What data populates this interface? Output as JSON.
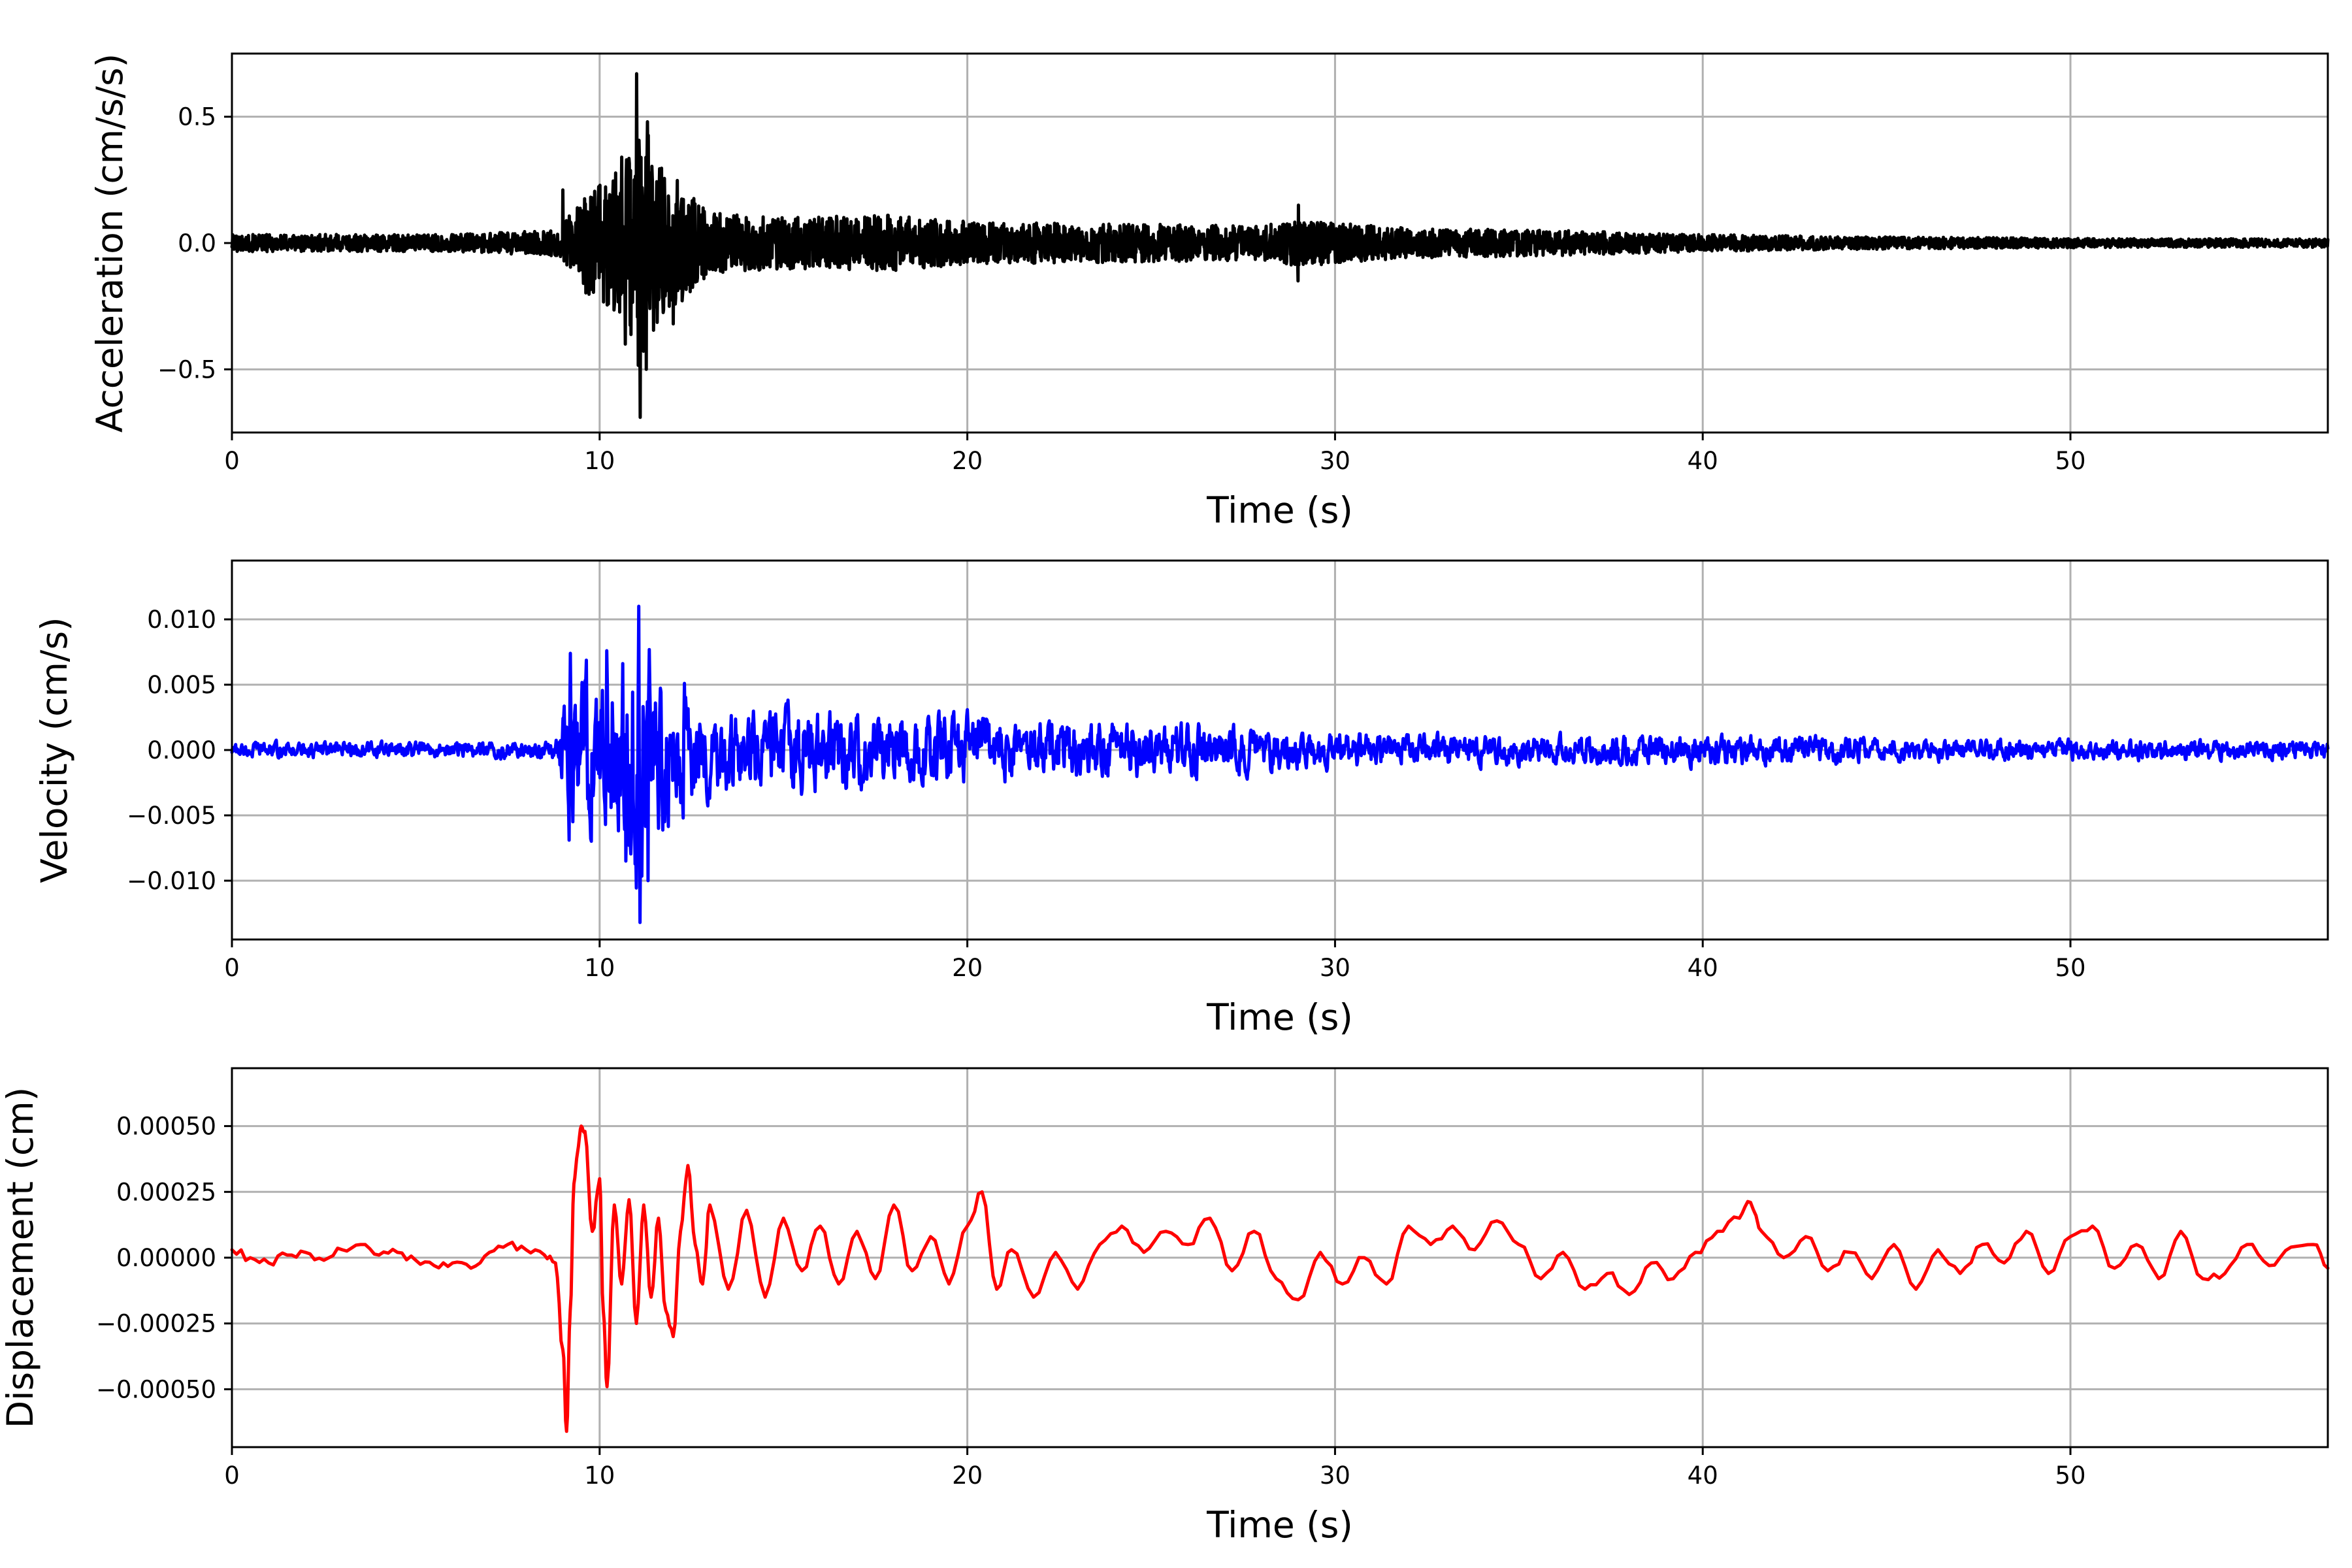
{
  "chart_data": [
    {
      "type": "line",
      "xlabel": "Time (s)",
      "ylabel": "Acceleration (cm/s/s)",
      "xlim": [
        0,
        57
      ],
      "ylim": [
        -0.75,
        0.75
      ],
      "xticks": [
        0,
        10,
        20,
        30,
        40,
        50
      ],
      "xtick_labels": [
        "0",
        "10",
        "20",
        "30",
        "40",
        "50"
      ],
      "yticks": [
        -0.5,
        0.0,
        0.5
      ],
      "ytick_labels": [
        "−0.5",
        "0.0",
        "0.5"
      ],
      "grid": true,
      "series": [
        {
          "color": "#000000",
          "envelope": {
            "x": [
              0,
              6,
              8.9,
              9.5,
              10.4,
              11.0,
              11.1,
              11.5,
              12.1,
              13.0,
              15.0,
              18.0,
              20.0,
              24.0,
              28.0,
              29.0,
              32.0,
              36.0,
              40.0,
              44.0,
              48.0,
              52.0,
              57.0
            ],
            "amplitude": [
              0.04,
              0.04,
              0.06,
              0.22,
              0.32,
              0.5,
              0.68,
              0.4,
              0.3,
              0.14,
              0.12,
              0.13,
              0.1,
              0.09,
              0.08,
              0.11,
              0.07,
              0.06,
              0.04,
              0.03,
              0.025,
              0.02,
              0.02
            ]
          },
          "peaks": [
            {
              "x": 11.0,
              "y": 0.67
            },
            {
              "x": 11.1,
              "y": -0.69
            },
            {
              "x": 11.3,
              "y": 0.48
            },
            {
              "x": 11.3,
              "y": -0.5
            },
            {
              "x": 10.6,
              "y": 0.34
            },
            {
              "x": 10.7,
              "y": -0.4
            },
            {
              "x": 9.0,
              "y": 0.21
            },
            {
              "x": 12.0,
              "y": -0.32
            },
            {
              "x": 29.0,
              "y": 0.15
            },
            {
              "x": 29.0,
              "y": -0.15
            }
          ]
        }
      ]
    },
    {
      "type": "line",
      "xlabel": "Time (s)",
      "ylabel": "Velocity (cm/s)",
      "xlim": [
        0,
        57
      ],
      "ylim": [
        -0.0145,
        0.0145
      ],
      "xticks": [
        0,
        10,
        20,
        30,
        40,
        50
      ],
      "xtick_labels": [
        "0",
        "10",
        "20",
        "30",
        "40",
        "50"
      ],
      "yticks": [
        -0.01,
        -0.005,
        0.0,
        0.005,
        0.01
      ],
      "ytick_labels": [
        "−0.010",
        "−0.005",
        "0.000",
        "0.005",
        "0.010"
      ],
      "grid": true,
      "series": [
        {
          "color": "#0000ff",
          "envelope": {
            "x": [
              0,
              6,
              8.8,
              9.2,
              10.2,
              11.0,
              11.1,
              11.5,
              12.2,
              13.0,
              15.0,
              20.0,
              21.0,
              25.0,
              30.0,
              35.0,
              40.0,
              45.0,
              50.0,
              57.0
            ],
            "amplitude": [
              0.0007,
              0.0007,
              0.0008,
              0.007,
              0.0075,
              0.011,
              0.0132,
              0.008,
              0.0055,
              0.0035,
              0.0035,
              0.003,
              0.0028,
              0.0025,
              0.0015,
              0.0012,
              0.0014,
              0.001,
              0.0009,
              0.0008
            ]
          },
          "peaks": [
            {
              "x": 11.1,
              "y": 0.011
            },
            {
              "x": 11.1,
              "y": -0.0132
            },
            {
              "x": 11.3,
              "y": -0.01
            },
            {
              "x": 9.2,
              "y": 0.0074
            },
            {
              "x": 9.2,
              "y": -0.0069
            },
            {
              "x": 10.2,
              "y": 0.0076
            },
            {
              "x": 10.7,
              "y": -0.0085
            },
            {
              "x": 12.3,
              "y": 0.0051
            },
            {
              "x": 12.3,
              "y": -0.0052
            }
          ]
        }
      ]
    },
    {
      "type": "line",
      "xlabel": "Time (s)",
      "ylabel": "Displacement (cm)",
      "xlim": [
        0,
        57
      ],
      "ylim": [
        -0.00072,
        0.00072
      ],
      "xticks": [
        0,
        10,
        20,
        30,
        40,
        50
      ],
      "xtick_labels": [
        "0",
        "10",
        "20",
        "30",
        "40",
        "50"
      ],
      "yticks": [
        -0.0005,
        -0.00025,
        0.0,
        0.00025,
        0.0005
      ],
      "ytick_labels": [
        "−0.00050",
        "−0.00025",
        "0.00000",
        "0.00025",
        "0.00050"
      ],
      "grid": true,
      "series": [
        {
          "color": "#ff0000",
          "x": [
            0,
            0.5,
            1,
            1.5,
            2,
            2.5,
            3,
            3.5,
            4,
            4.5,
            5,
            5.5,
            6,
            6.5,
            7,
            7.5,
            8,
            8.5,
            8.8,
            9.0,
            9.1,
            9.2,
            9.3,
            9.4,
            9.5,
            9.6,
            9.8,
            10.0,
            10.1,
            10.2,
            10.4,
            10.6,
            10.8,
            11.0,
            11.2,
            11.4,
            11.6,
            11.8,
            12.0,
            12.2,
            12.4,
            12.6,
            12.8,
            13.0,
            13.5,
            14.0,
            14.5,
            15.0,
            15.5,
            16.0,
            16.5,
            17.0,
            17.5,
            18.0,
            18.5,
            19.0,
            19.5,
            20.0,
            20.4,
            20.8,
            21.2,
            21.8,
            22.4,
            23.0,
            23.6,
            24.2,
            24.8,
            25.4,
            26.0,
            26.6,
            27.2,
            27.8,
            28.4,
            29.0,
            29.6,
            30.2,
            30.8,
            31.4,
            32.0,
            32.6,
            33.2,
            33.8,
            34.4,
            35.0,
            35.6,
            36.2,
            36.8,
            37.4,
            38.0,
            38.6,
            39.2,
            39.8,
            40.4,
            41.0,
            41.3,
            41.6,
            42.2,
            42.8,
            43.4,
            44.0,
            44.6,
            45.2,
            45.8,
            46.4,
            47.0,
            47.6,
            48.2,
            48.8,
            49.4,
            50.0,
            50.6,
            51.2,
            51.8,
            52.4,
            53.0,
            53.6,
            54.2,
            54.8,
            55.4,
            56.0,
            56.6,
            57.0
          ],
          "y": [
            3e-05,
            0.0,
            -2e-05,
            1e-05,
            2e-05,
            -1e-05,
            3e-05,
            5e-05,
            1e-05,
            2e-05,
            -1e-05,
            -3e-05,
            -2e-05,
            -4e-05,
            2e-05,
            5e-05,
            3e-05,
            1e-05,
            -2e-05,
            -0.00035,
            -0.00066,
            -0.0002,
            0.00028,
            0.0004,
            0.0005,
            0.00048,
            0.0001,
            0.0003,
            -0.0002,
            -0.00049,
            0.0002,
            -0.0001,
            0.00022,
            -0.00025,
            0.0002,
            -0.00015,
            0.00015,
            -0.0002,
            -0.0003,
            0.0001,
            0.00035,
            5e-05,
            -0.0001,
            0.0002,
            -0.00012,
            0.00018,
            -0.00015,
            0.00015,
            -5e-05,
            0.00012,
            -0.0001,
            0.0001,
            -8e-05,
            0.0002,
            -5e-05,
            8e-05,
            -0.0001,
            0.00012,
            0.00025,
            -0.00012,
            3e-05,
            -0.00015,
            2e-05,
            -0.00012,
            5e-05,
            0.00012,
            2e-05,
            0.0001,
            5e-05,
            0.00015,
            -5e-05,
            0.0001,
            -8e-05,
            -0.00016,
            2e-05,
            -0.0001,
            0.0,
            -0.0001,
            0.00012,
            5e-05,
            0.00012,
            3e-05,
            0.00014,
            5e-05,
            -8e-05,
            2e-05,
            -0.00012,
            -6e-05,
            -0.00014,
            -2e-05,
            -8e-05,
            2e-05,
            0.0001,
            0.00015,
            0.00021,
            0.0001,
            0.0,
            8e-05,
            -5e-05,
            2e-05,
            -8e-05,
            5e-05,
            -0.00012,
            3e-05,
            -6e-05,
            5e-05,
            -2e-05,
            0.0001,
            -6e-05,
            8e-05,
            0.00012,
            -4e-05,
            5e-05,
            -8e-05,
            0.0001,
            -8e-05,
            -6e-05,
            5e-05,
            -3e-05,
            4e-05,
            5e-05,
            -4e-05
          ]
        }
      ]
    }
  ]
}
